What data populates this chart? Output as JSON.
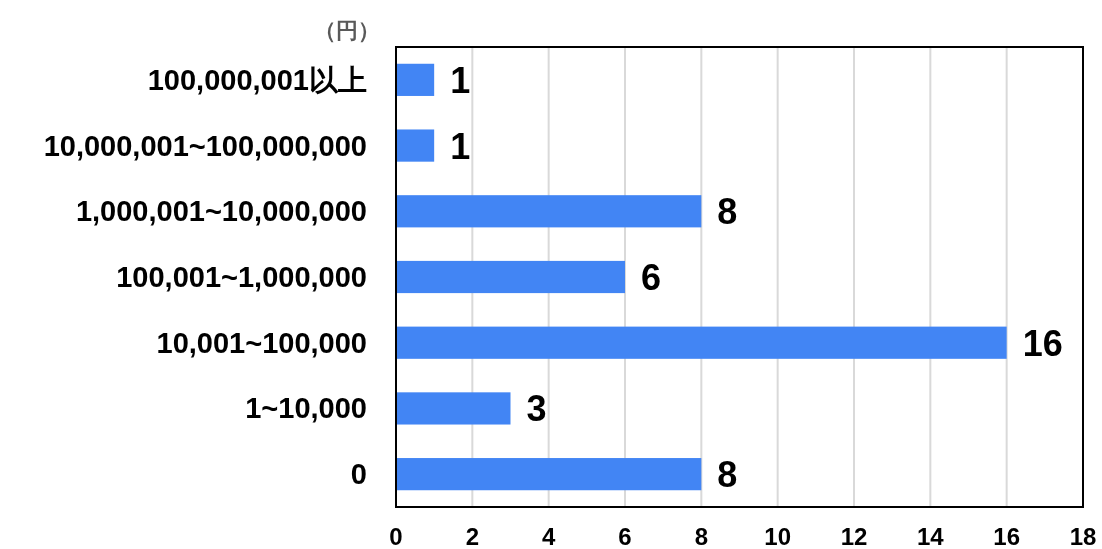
{
  "chart_data": {
    "type": "bar",
    "orientation": "horizontal",
    "ylabel": "（円）",
    "categories": [
      "100,000,001以上",
      "10,000,001~100,000,000",
      "1,000,001~10,000,000",
      "100,001~1,000,000",
      "10,001~100,000",
      "1~10,000",
      "0"
    ],
    "values": [
      1,
      1,
      8,
      6,
      16,
      3,
      8
    ],
    "color": "#4285f4",
    "xlim": [
      0,
      18
    ],
    "xticks": [
      0,
      2,
      4,
      6,
      8,
      10,
      12,
      14,
      16,
      18
    ],
    "grid": "x",
    "data_labels": true
  }
}
